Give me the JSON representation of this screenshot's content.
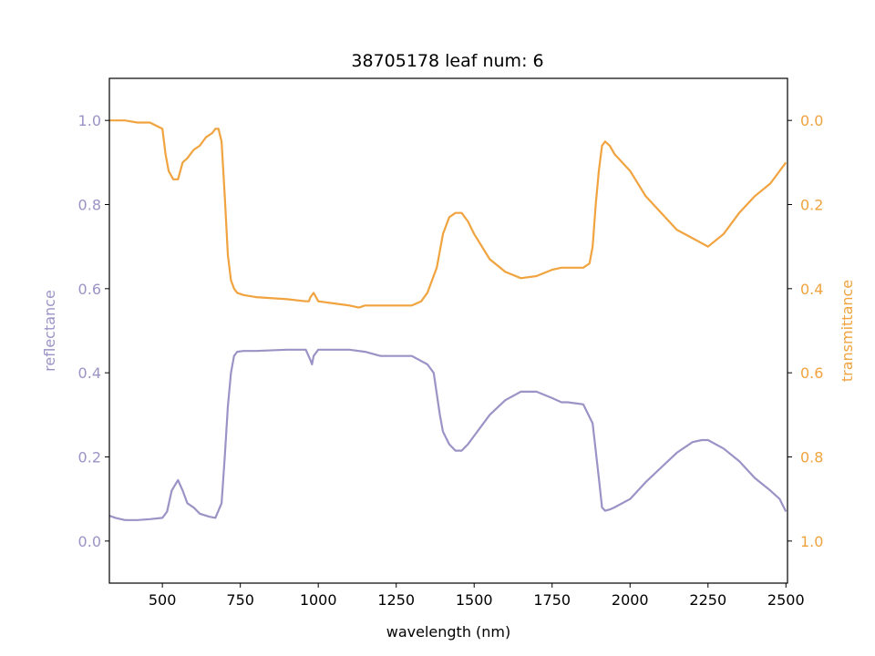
{
  "chart_data": {
    "type": "line",
    "title": "38705178 leaf num: 6",
    "xlabel": "wavelength (nm)",
    "ylabel_left": "reflectance",
    "ylabel_right": "transmittance",
    "xlim": [
      330,
      2505
    ],
    "ylim_left": [
      -0.1,
      1.1
    ],
    "ylim_right": [
      1.1,
      -0.1
    ],
    "right_axis_inverted": true,
    "x_ticks": [
      500,
      750,
      1000,
      1250,
      1500,
      1750,
      2000,
      2250,
      2500
    ],
    "y_ticks_left": [
      "0.0",
      "0.2",
      "0.4",
      "0.6",
      "0.8",
      "1.0"
    ],
    "y_ticks_right": [
      "0.0",
      "0.2",
      "0.4",
      "0.6",
      "0.8",
      "1.0"
    ],
    "colors": {
      "reflectance": "#9b93c6",
      "transmittance": "#f0a33e",
      "axis_left_text": "#9b93c6",
      "axis_right_text": "#f0a33e"
    },
    "series": [
      {
        "axis": "left",
        "color": "#9b93c6",
        "x": [
          330,
          350,
          380,
          420,
          460,
          500,
          515,
          530,
          550,
          565,
          580,
          600,
          620,
          650,
          670,
          690,
          700,
          710,
          720,
          730,
          740,
          760,
          800,
          900,
          960,
          975,
          980,
          985,
          1000,
          1050,
          1100,
          1150,
          1200,
          1250,
          1300,
          1350,
          1370,
          1390,
          1400,
          1420,
          1440,
          1460,
          1480,
          1500,
          1550,
          1600,
          1650,
          1700,
          1750,
          1780,
          1800,
          1850,
          1880,
          1900,
          1910,
          1920,
          1935,
          1950,
          2000,
          2050,
          2100,
          2150,
          2200,
          2230,
          2250,
          2300,
          2350,
          2400,
          2450,
          2480,
          2500
        ],
        "y": [
          0.06,
          0.055,
          0.05,
          0.05,
          0.052,
          0.055,
          0.07,
          0.12,
          0.145,
          0.12,
          0.09,
          0.08,
          0.065,
          0.058,
          0.055,
          0.09,
          0.2,
          0.32,
          0.4,
          0.44,
          0.45,
          0.452,
          0.452,
          0.455,
          0.455,
          0.43,
          0.42,
          0.44,
          0.455,
          0.455,
          0.455,
          0.45,
          0.44,
          0.44,
          0.44,
          0.42,
          0.4,
          0.3,
          0.26,
          0.23,
          0.215,
          0.215,
          0.23,
          0.25,
          0.3,
          0.335,
          0.355,
          0.355,
          0.34,
          0.33,
          0.33,
          0.325,
          0.28,
          0.15,
          0.08,
          0.072,
          0.075,
          0.08,
          0.1,
          0.14,
          0.175,
          0.21,
          0.235,
          0.24,
          0.24,
          0.22,
          0.19,
          0.15,
          0.12,
          0.1,
          0.07
        ]
      },
      {
        "axis": "right",
        "color": "#f0a33e",
        "x": [
          330,
          350,
          380,
          420,
          460,
          500,
          510,
          520,
          535,
          550,
          565,
          580,
          600,
          620,
          640,
          660,
          670,
          680,
          690,
          700,
          710,
          720,
          730,
          740,
          760,
          800,
          900,
          960,
          970,
          975,
          985,
          1000,
          1050,
          1100,
          1130,
          1150,
          1200,
          1250,
          1300,
          1330,
          1350,
          1380,
          1400,
          1420,
          1440,
          1460,
          1480,
          1500,
          1550,
          1600,
          1650,
          1700,
          1750,
          1780,
          1800,
          1850,
          1870,
          1880,
          1890,
          1900,
          1910,
          1920,
          1935,
          1950,
          2000,
          2050,
          2100,
          2150,
          2200,
          2250,
          2300,
          2350,
          2400,
          2450,
          2480,
          2500
        ],
        "y": [
          0.0,
          0.0,
          0.0,
          0.005,
          0.005,
          0.02,
          0.08,
          0.12,
          0.14,
          0.14,
          0.1,
          0.09,
          0.07,
          0.06,
          0.04,
          0.03,
          0.02,
          0.02,
          0.05,
          0.18,
          0.32,
          0.38,
          0.4,
          0.41,
          0.415,
          0.42,
          0.425,
          0.43,
          0.43,
          0.42,
          0.41,
          0.43,
          0.435,
          0.44,
          0.445,
          0.44,
          0.44,
          0.44,
          0.44,
          0.43,
          0.41,
          0.35,
          0.27,
          0.23,
          0.22,
          0.22,
          0.24,
          0.27,
          0.33,
          0.36,
          0.375,
          0.37,
          0.355,
          0.35,
          0.35,
          0.35,
          0.34,
          0.3,
          0.2,
          0.12,
          0.06,
          0.05,
          0.06,
          0.08,
          0.12,
          0.18,
          0.22,
          0.26,
          0.28,
          0.3,
          0.27,
          0.22,
          0.18,
          0.15,
          0.12,
          0.1
        ]
      }
    ]
  }
}
